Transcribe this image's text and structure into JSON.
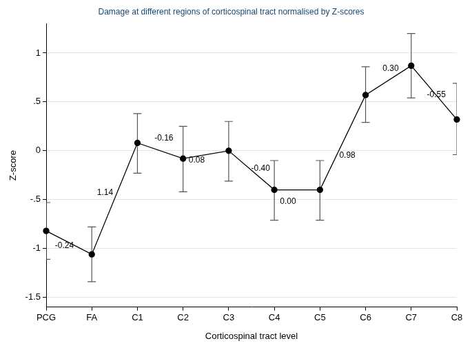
{
  "chart_data": {
    "type": "line",
    "title": "Damage at different regions of corticospinal tract normalised by Z-scores",
    "x_label": "Corticospinal tract level",
    "y_label": "Z-score",
    "categories": [
      "PCG",
      "FA",
      "C1",
      "C2",
      "C3",
      "C4",
      "C5",
      "C6",
      "C7",
      "C8"
    ],
    "values": [
      -0.82,
      -1.06,
      0.08,
      -0.08,
      0.0,
      -0.4,
      -0.4,
      0.57,
      0.87,
      0.32
    ],
    "error_lower": [
      -1.11,
      -1.34,
      -0.23,
      -0.42,
      -0.31,
      -0.71,
      -0.71,
      0.29,
      0.54,
      -0.04
    ],
    "error_upper": [
      -0.53,
      -0.78,
      0.38,
      0.25,
      0.3,
      -0.1,
      -0.1,
      0.86,
      1.2,
      0.69
    ],
    "color": "#000000",
    "marker": "circle",
    "line_style": "solid",
    "ylim": [
      -1.6,
      1.3
    ],
    "yticks": [
      -1.5,
      -1,
      {
        "value": -0.5,
        "label": "-.5"
      },
      0,
      {
        "value": 0.5,
        "label": ".5"
      },
      1
    ],
    "grid": true,
    "annotations": [
      {
        "text": "-0.24",
        "x": 0.4,
        "y": -0.97
      },
      {
        "text": "1.14",
        "x": 1.29,
        "y": -0.43
      },
      {
        "text": "-0.16",
        "x": 2.58,
        "y": 0.13
      },
      {
        "text": "0.08",
        "x": 3.3,
        "y": -0.1
      },
      {
        "text": "-0.40",
        "x": 4.7,
        "y": -0.18
      },
      {
        "text": "0.00",
        "x": 5.3,
        "y": -0.52
      },
      {
        "text": "0.98",
        "x": 6.6,
        "y": -0.05
      },
      {
        "text": "0.30",
        "x": 7.55,
        "y": 0.84
      },
      {
        "text": "-0.55",
        "x": 8.55,
        "y": 0.57
      }
    ]
  }
}
